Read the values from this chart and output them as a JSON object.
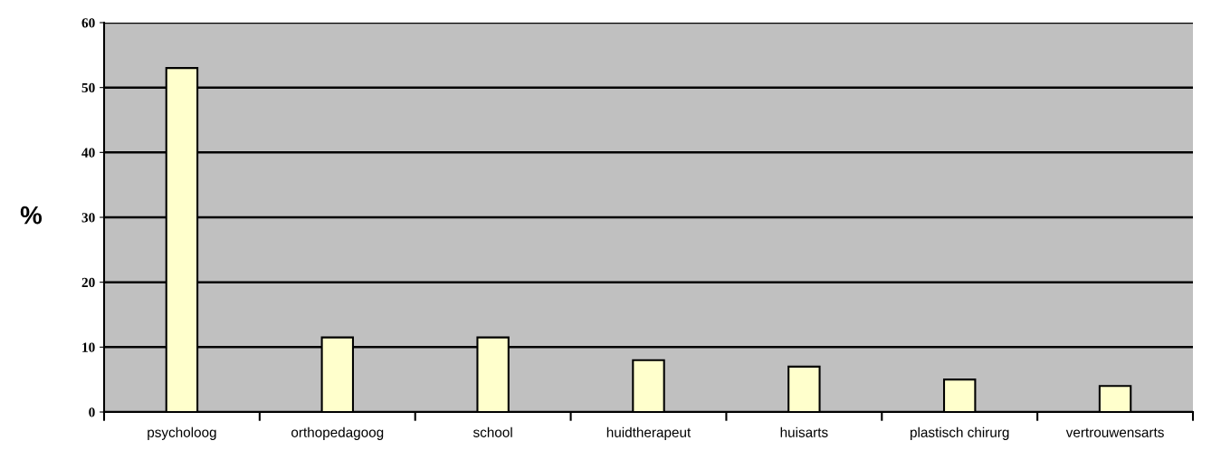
{
  "chart_data": {
    "type": "bar",
    "ylabel": "%",
    "categories": [
      "psycholoog",
      "orthopedagoog",
      "school",
      "huidtherapeut",
      "huisarts",
      "plastisch chirurg",
      "vertrouwensarts"
    ],
    "values": [
      53,
      11.5,
      11.5,
      8,
      7,
      5,
      4
    ],
    "color": "#ffffcc",
    "ylim": [
      0,
      60
    ],
    "yticks": [
      0,
      10,
      20,
      30,
      40,
      50,
      60
    ],
    "grid": "y"
  }
}
